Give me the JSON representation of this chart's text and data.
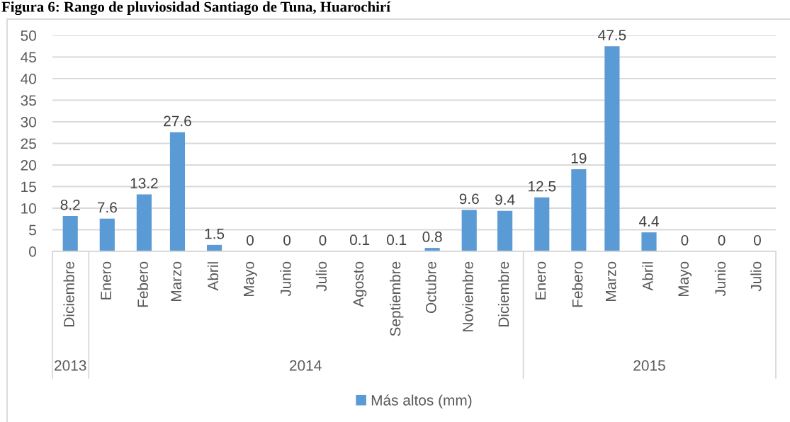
{
  "chart_data": {
    "type": "bar",
    "title": "Figura 6: Rango de pluviosidad Santiago de Tuna, Huarochirí",
    "x": [
      "2013-12",
      "2014-01",
      "2014-02",
      "2014-03",
      "2014-04",
      "2014-05",
      "2014-06",
      "2014-07",
      "2014-08",
      "2014-09",
      "2014-10",
      "2014-11",
      "2014-12",
      "2015-01",
      "2015-02",
      "2015-03",
      "2015-04",
      "2015-05",
      "2015-06",
      "2015-07"
    ],
    "xlim": [
      "2013-11-16",
      "2015-07-16T12:00"
    ],
    "xticks": [
      {
        "value": "2013-12",
        "label": "Diciembre"
      },
      {
        "value": "2014-01",
        "label": "Enero"
      },
      {
        "value": "2014-02",
        "label": "Febero"
      },
      {
        "value": "2014-03",
        "label": "Marzo"
      },
      {
        "value": "2014-04",
        "label": "Abril"
      },
      {
        "value": "2014-05",
        "label": "Mayo"
      },
      {
        "value": "2014-06",
        "label": "Junio"
      },
      {
        "value": "2014-07",
        "label": "Julio"
      },
      {
        "value": "2014-08",
        "label": "Agosto"
      },
      {
        "value": "2014-09",
        "label": "Septiembre"
      },
      {
        "value": "2014-10",
        "label": "Octubre"
      },
      {
        "value": "2014-11",
        "label": "Noviembre"
      },
      {
        "value": "2014-12",
        "label": "Diciembre"
      },
      {
        "value": "2015-01",
        "label": "Enero"
      },
      {
        "value": "2015-02",
        "label": "Febero"
      },
      {
        "value": "2015-03",
        "label": "Marzo"
      },
      {
        "value": "2015-04",
        "label": "Abril"
      },
      {
        "value": "2015-05",
        "label": "Mayo"
      },
      {
        "value": "2015-06",
        "label": "Junio"
      },
      {
        "value": "2015-07",
        "label": "Julio"
      }
    ],
    "series": [
      {
        "name": "Más altos (mm)",
        "color": "#5b9bd5",
        "values": [
          8.2,
          7.6,
          13.2,
          27.6,
          1.5,
          0,
          0,
          0,
          0.1,
          0.1,
          0.8,
          9.6,
          9.4,
          12.5,
          19,
          47.5,
          4.4,
          0,
          0,
          0
        ]
      }
    ],
    "ylim": [
      0,
      50
    ],
    "yticks": [
      0,
      5,
      10,
      15,
      20,
      25,
      30,
      35,
      40,
      45,
      50
    ],
    "grid": "y",
    "legend": "bottom",
    "data_labels": true,
    "annotations": [
      "2013",
      "2014",
      "2015"
    ]
  }
}
